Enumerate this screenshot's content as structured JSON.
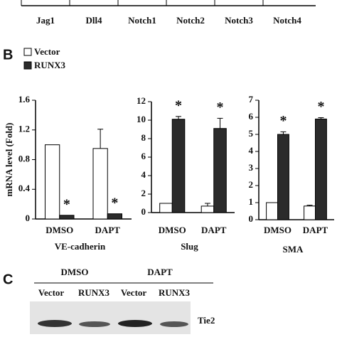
{
  "panel_labels": [
    "B",
    "C"
  ],
  "chart_data": [
    {
      "type": "bar",
      "categories": [
        "Jag1",
        "Dll4",
        "Notch1",
        "Notch2",
        "Notch3",
        "Notch4"
      ]
    },
    {
      "type": "bar",
      "ylabel": "mRNA level (Fold)",
      "xlabel": "VE-cadherin",
      "categories": [
        "DMSO",
        "DAPT"
      ],
      "ylim": [
        0,
        1.6
      ],
      "yticks": [
        0,
        0.4,
        0.8,
        1.2,
        1.6
      ],
      "series": [
        {
          "name": "Vector",
          "color": "#ffffff",
          "values": [
            1.0,
            0.95
          ],
          "errors": [
            null,
            0.26
          ]
        },
        {
          "name": "RUNX3",
          "color": "#2b2b2b",
          "values": [
            0.05,
            0.07
          ],
          "errors": [
            null,
            null
          ],
          "significance": [
            "*",
            "*"
          ]
        }
      ]
    },
    {
      "type": "bar",
      "xlabel": "Slug",
      "categories": [
        "DMSO",
        "DAPT"
      ],
      "ylim": [
        0,
        12
      ],
      "yticks": [
        0,
        2,
        4,
        6,
        8,
        10,
        12
      ],
      "series": [
        {
          "color": "#ffffff",
          "values": [
            1.0,
            0.7
          ],
          "errors": [
            null,
            0.3
          ]
        },
        {
          "color": "#2b2b2b",
          "values": [
            10.1,
            9.1
          ],
          "errors": [
            0.3,
            1.1
          ],
          "significance": [
            "*",
            "*"
          ]
        }
      ]
    },
    {
      "type": "bar",
      "xlabel": "SMA",
      "categories": [
        "DMSO",
        "DAPT"
      ],
      "ylim": [
        0,
        7
      ],
      "yticks": [
        0,
        1,
        2,
        3,
        4,
        5,
        6,
        7
      ],
      "series": [
        {
          "color": "#ffffff",
          "values": [
            1.0,
            0.8
          ],
          "errors": [
            null,
            0.05
          ]
        },
        {
          "color": "#2b2b2b",
          "values": [
            5.0,
            5.9
          ],
          "errors": [
            0.15,
            0.08
          ],
          "significance": [
            "*",
            "*"
          ]
        }
      ]
    }
  ],
  "blot": {
    "groups": [
      "DMSO",
      "DAPT"
    ],
    "lanes": [
      "Vector",
      "RUNX3",
      "Vector",
      "RUNX3"
    ],
    "protein": "Tie2"
  }
}
